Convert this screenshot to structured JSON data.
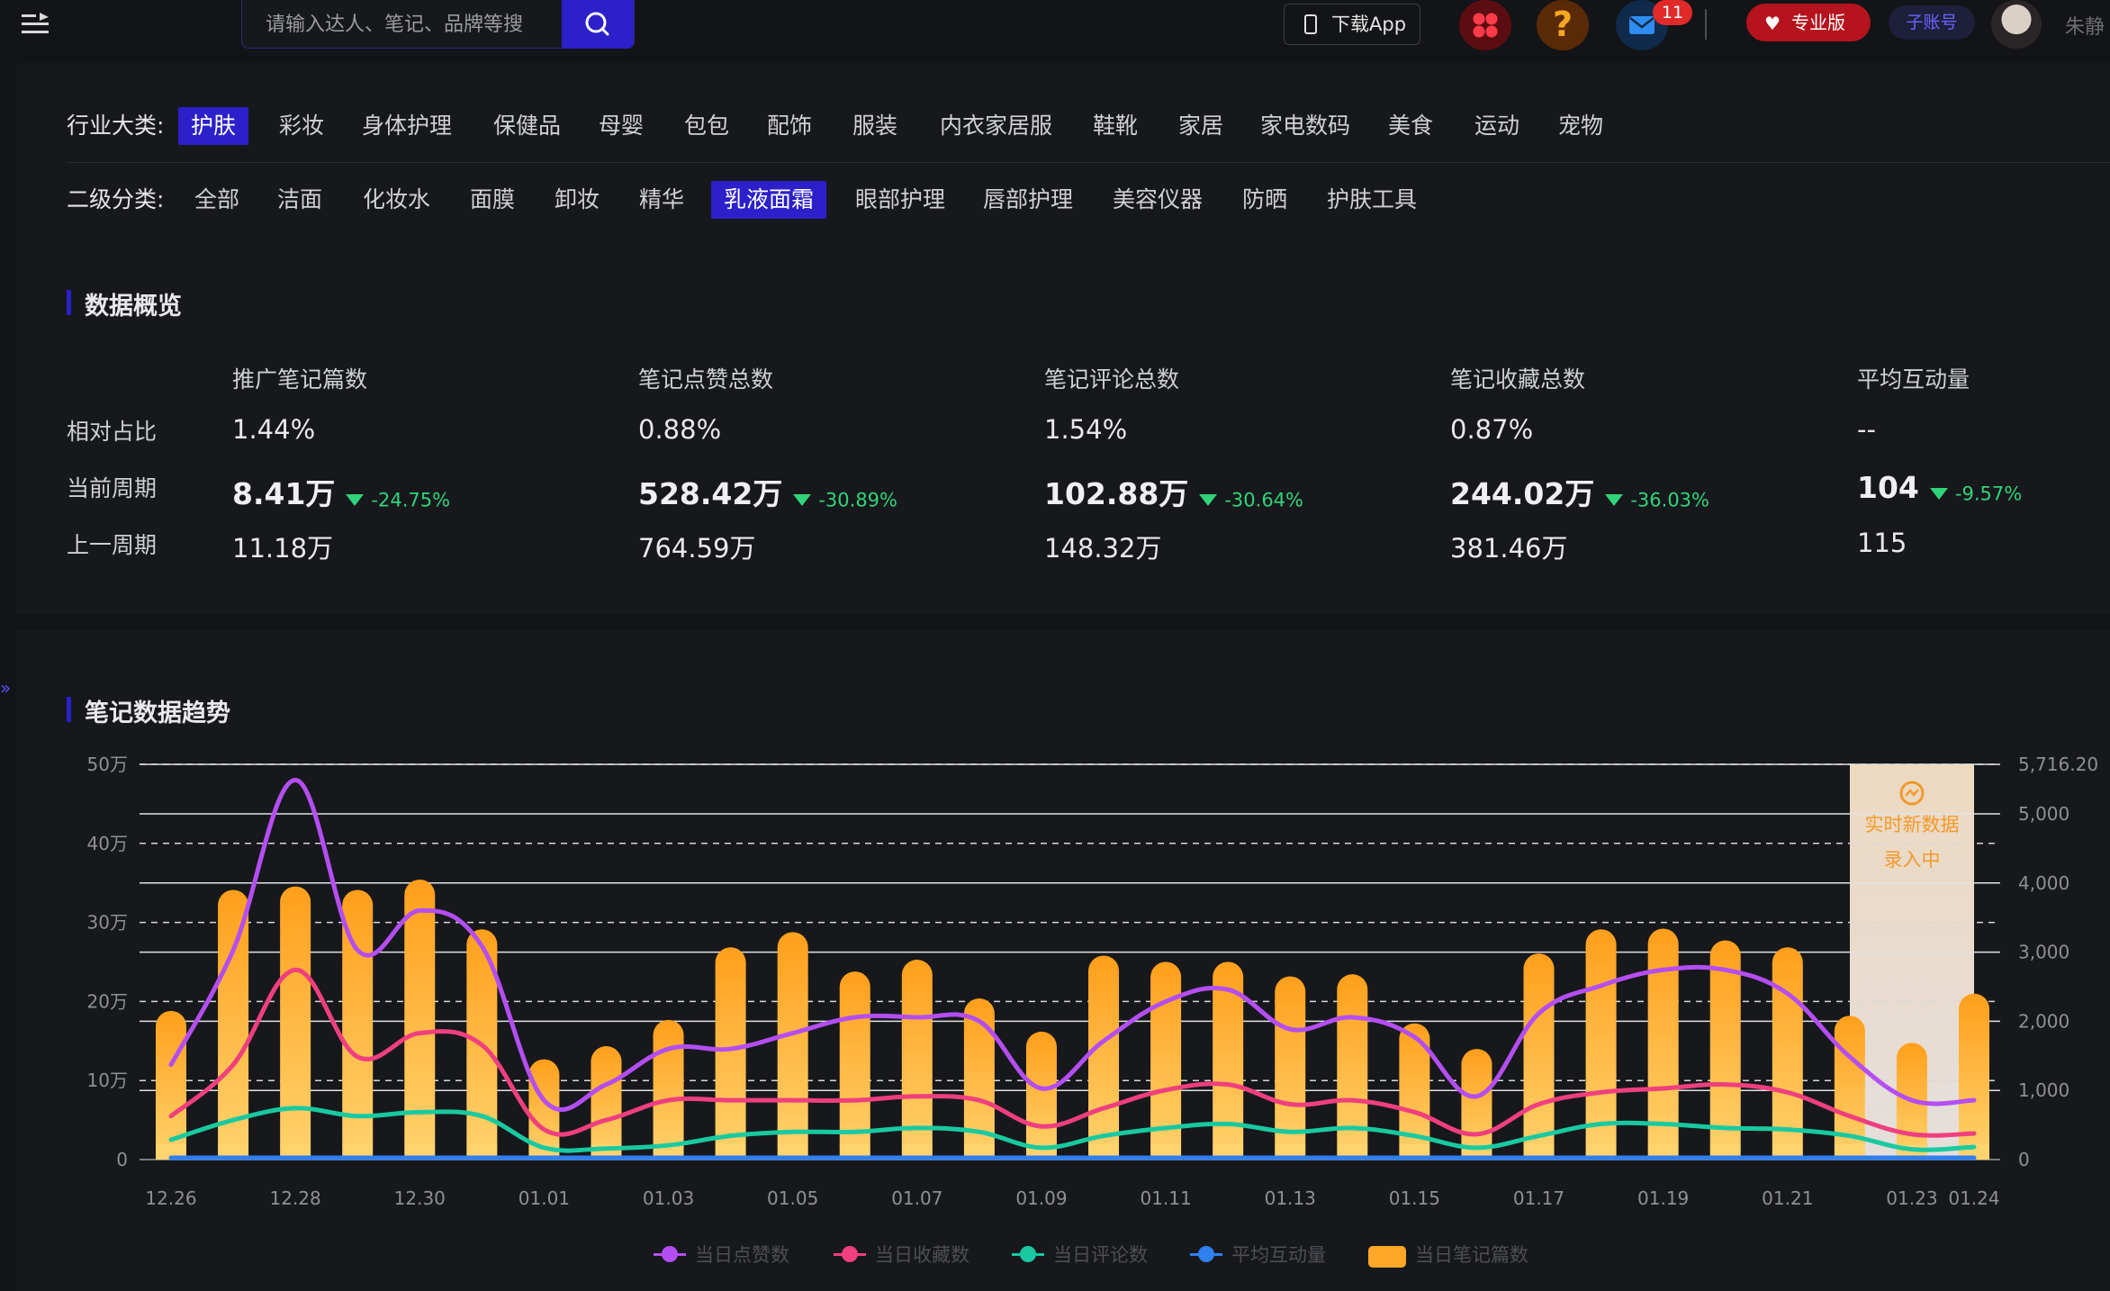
{
  "header": {
    "search_placeholder": "请输入达人、笔记、品牌等搜",
    "download_label": "下载App",
    "mail_badge": "11",
    "pro_label": "专业版",
    "sub_account_label": "子账号",
    "username": "朱静"
  },
  "filters": {
    "industry_label": "行业大类:",
    "industries": [
      "护肤",
      "彩妆",
      "身体护理",
      "保健品",
      "母婴",
      "包包",
      "配饰",
      "服装",
      "内衣家居服",
      "鞋靴",
      "家居",
      "家电数码",
      "美食",
      "运动",
      "宠物"
    ],
    "industry_active": "护肤",
    "sub_label": "二级分类:",
    "subs": [
      "全部",
      "洁面",
      "化妆水",
      "面膜",
      "卸妆",
      "精华",
      "乳液面霜",
      "眼部护理",
      "唇部护理",
      "美容仪器",
      "防晒",
      "护肤工具"
    ],
    "sub_active": "乳液面霜"
  },
  "overview": {
    "title": "数据概览",
    "row_labels": [
      "相对占比",
      "当前周期",
      "上一周期"
    ],
    "metrics": [
      {
        "name": "推广笔记篇数",
        "ratio": "1.44%",
        "current": "8.41万",
        "change": "-24.75%",
        "previous": "11.18万"
      },
      {
        "name": "笔记点赞总数",
        "ratio": "0.88%",
        "current": "528.42万",
        "change": "-30.89%",
        "previous": "764.59万"
      },
      {
        "name": "笔记评论总数",
        "ratio": "1.54%",
        "current": "102.88万",
        "change": "-30.64%",
        "previous": "148.32万"
      },
      {
        "name": "笔记收藏总数",
        "ratio": "0.87%",
        "current": "244.02万",
        "change": "-36.03%",
        "previous": "381.46万"
      },
      {
        "name": "平均互动量",
        "ratio": "--",
        "current": "104",
        "change": "-9.57%",
        "previous": "115"
      }
    ]
  },
  "trend": {
    "title": "笔记数据趋势",
    "realtime_line1": "实时新数据",
    "realtime_line2": "录入中"
  },
  "chart_data": {
    "type": "bar",
    "title": "笔记数据趋势",
    "x": [
      "12.26",
      "12.27",
      "12.28",
      "12.29",
      "12.30",
      "12.31",
      "01.01",
      "01.02",
      "01.03",
      "01.04",
      "01.05",
      "01.06",
      "01.07",
      "01.08",
      "01.09",
      "01.10",
      "01.11",
      "01.12",
      "01.13",
      "01.14",
      "01.15",
      "01.16",
      "01.17",
      "01.18",
      "01.19",
      "01.20",
      "01.21",
      "01.22",
      "01.23",
      "01.24"
    ],
    "x_tick_labels": [
      "12.26",
      "12.28",
      "12.30",
      "01.01",
      "01.03",
      "01.05",
      "01.07",
      "01.09",
      "01.11",
      "01.13",
      "01.15",
      "01.17",
      "01.19",
      "01.21",
      "01.23",
      "01.24"
    ],
    "left_axis": {
      "ticks": [
        "0",
        "10万",
        "20万",
        "30万",
        "40万",
        "50万"
      ],
      "range": [
        0,
        500000
      ]
    },
    "right_axis": {
      "ticks": [
        "0",
        "1,000",
        "2,000",
        "3,000",
        "4,000",
        "5,000",
        "5,716.20"
      ],
      "range": [
        0,
        5716.2
      ]
    },
    "series": [
      {
        "name": "当日点赞数",
        "type": "line",
        "axis": "left",
        "color": "#b44ef2",
        "values": [
          120000,
          265000,
          480000,
          265000,
          315000,
          270000,
          75000,
          95000,
          140000,
          140000,
          160000,
          180000,
          180000,
          175000,
          90000,
          150000,
          200000,
          215000,
          165000,
          180000,
          155000,
          80000,
          185000,
          220000,
          240000,
          240000,
          210000,
          130000,
          75000,
          75000
        ]
      },
      {
        "name": "当日收藏数",
        "type": "line",
        "axis": "left",
        "color": "#ef3f7f",
        "values": [
          55000,
          120000,
          240000,
          130000,
          160000,
          145000,
          38000,
          50000,
          75000,
          75000,
          75000,
          75000,
          80000,
          75000,
          42000,
          65000,
          88000,
          95000,
          70000,
          75000,
          60000,
          32000,
          70000,
          85000,
          90000,
          95000,
          85000,
          55000,
          32000,
          33000
        ]
      },
      {
        "name": "当日评论数",
        "type": "line",
        "axis": "left",
        "color": "#19c9a0",
        "values": [
          25000,
          50000,
          65000,
          55000,
          60000,
          55000,
          15000,
          14000,
          18000,
          30000,
          35000,
          35000,
          40000,
          35000,
          15000,
          30000,
          40000,
          45000,
          35000,
          40000,
          30000,
          15000,
          30000,
          45000,
          45000,
          40000,
          38000,
          30000,
          13000,
          16000
        ]
      },
      {
        "name": "平均互动量",
        "type": "line",
        "axis": "left",
        "color": "#2f7ff0",
        "values": [
          200,
          200,
          200,
          200,
          200,
          200,
          200,
          200,
          200,
          200,
          200,
          200,
          200,
          200,
          200,
          200,
          200,
          200,
          200,
          200,
          200,
          200,
          200,
          200,
          200,
          200,
          200,
          200,
          200,
          200
        ]
      },
      {
        "name": "当日笔记篇数",
        "type": "bar",
        "axis": "right",
        "color": "#ffa726",
        "values": [
          2150,
          3900,
          3950,
          3900,
          4050,
          3330,
          1450,
          1640,
          2020,
          3070,
          3290,
          2720,
          2890,
          2330,
          1850,
          2950,
          2860,
          2860,
          2650,
          2680,
          1970,
          1600,
          2980,
          3330,
          3340,
          3170,
          3070,
          2080,
          1690,
          2400
        ]
      }
    ],
    "legend_position": "bottom-center"
  }
}
